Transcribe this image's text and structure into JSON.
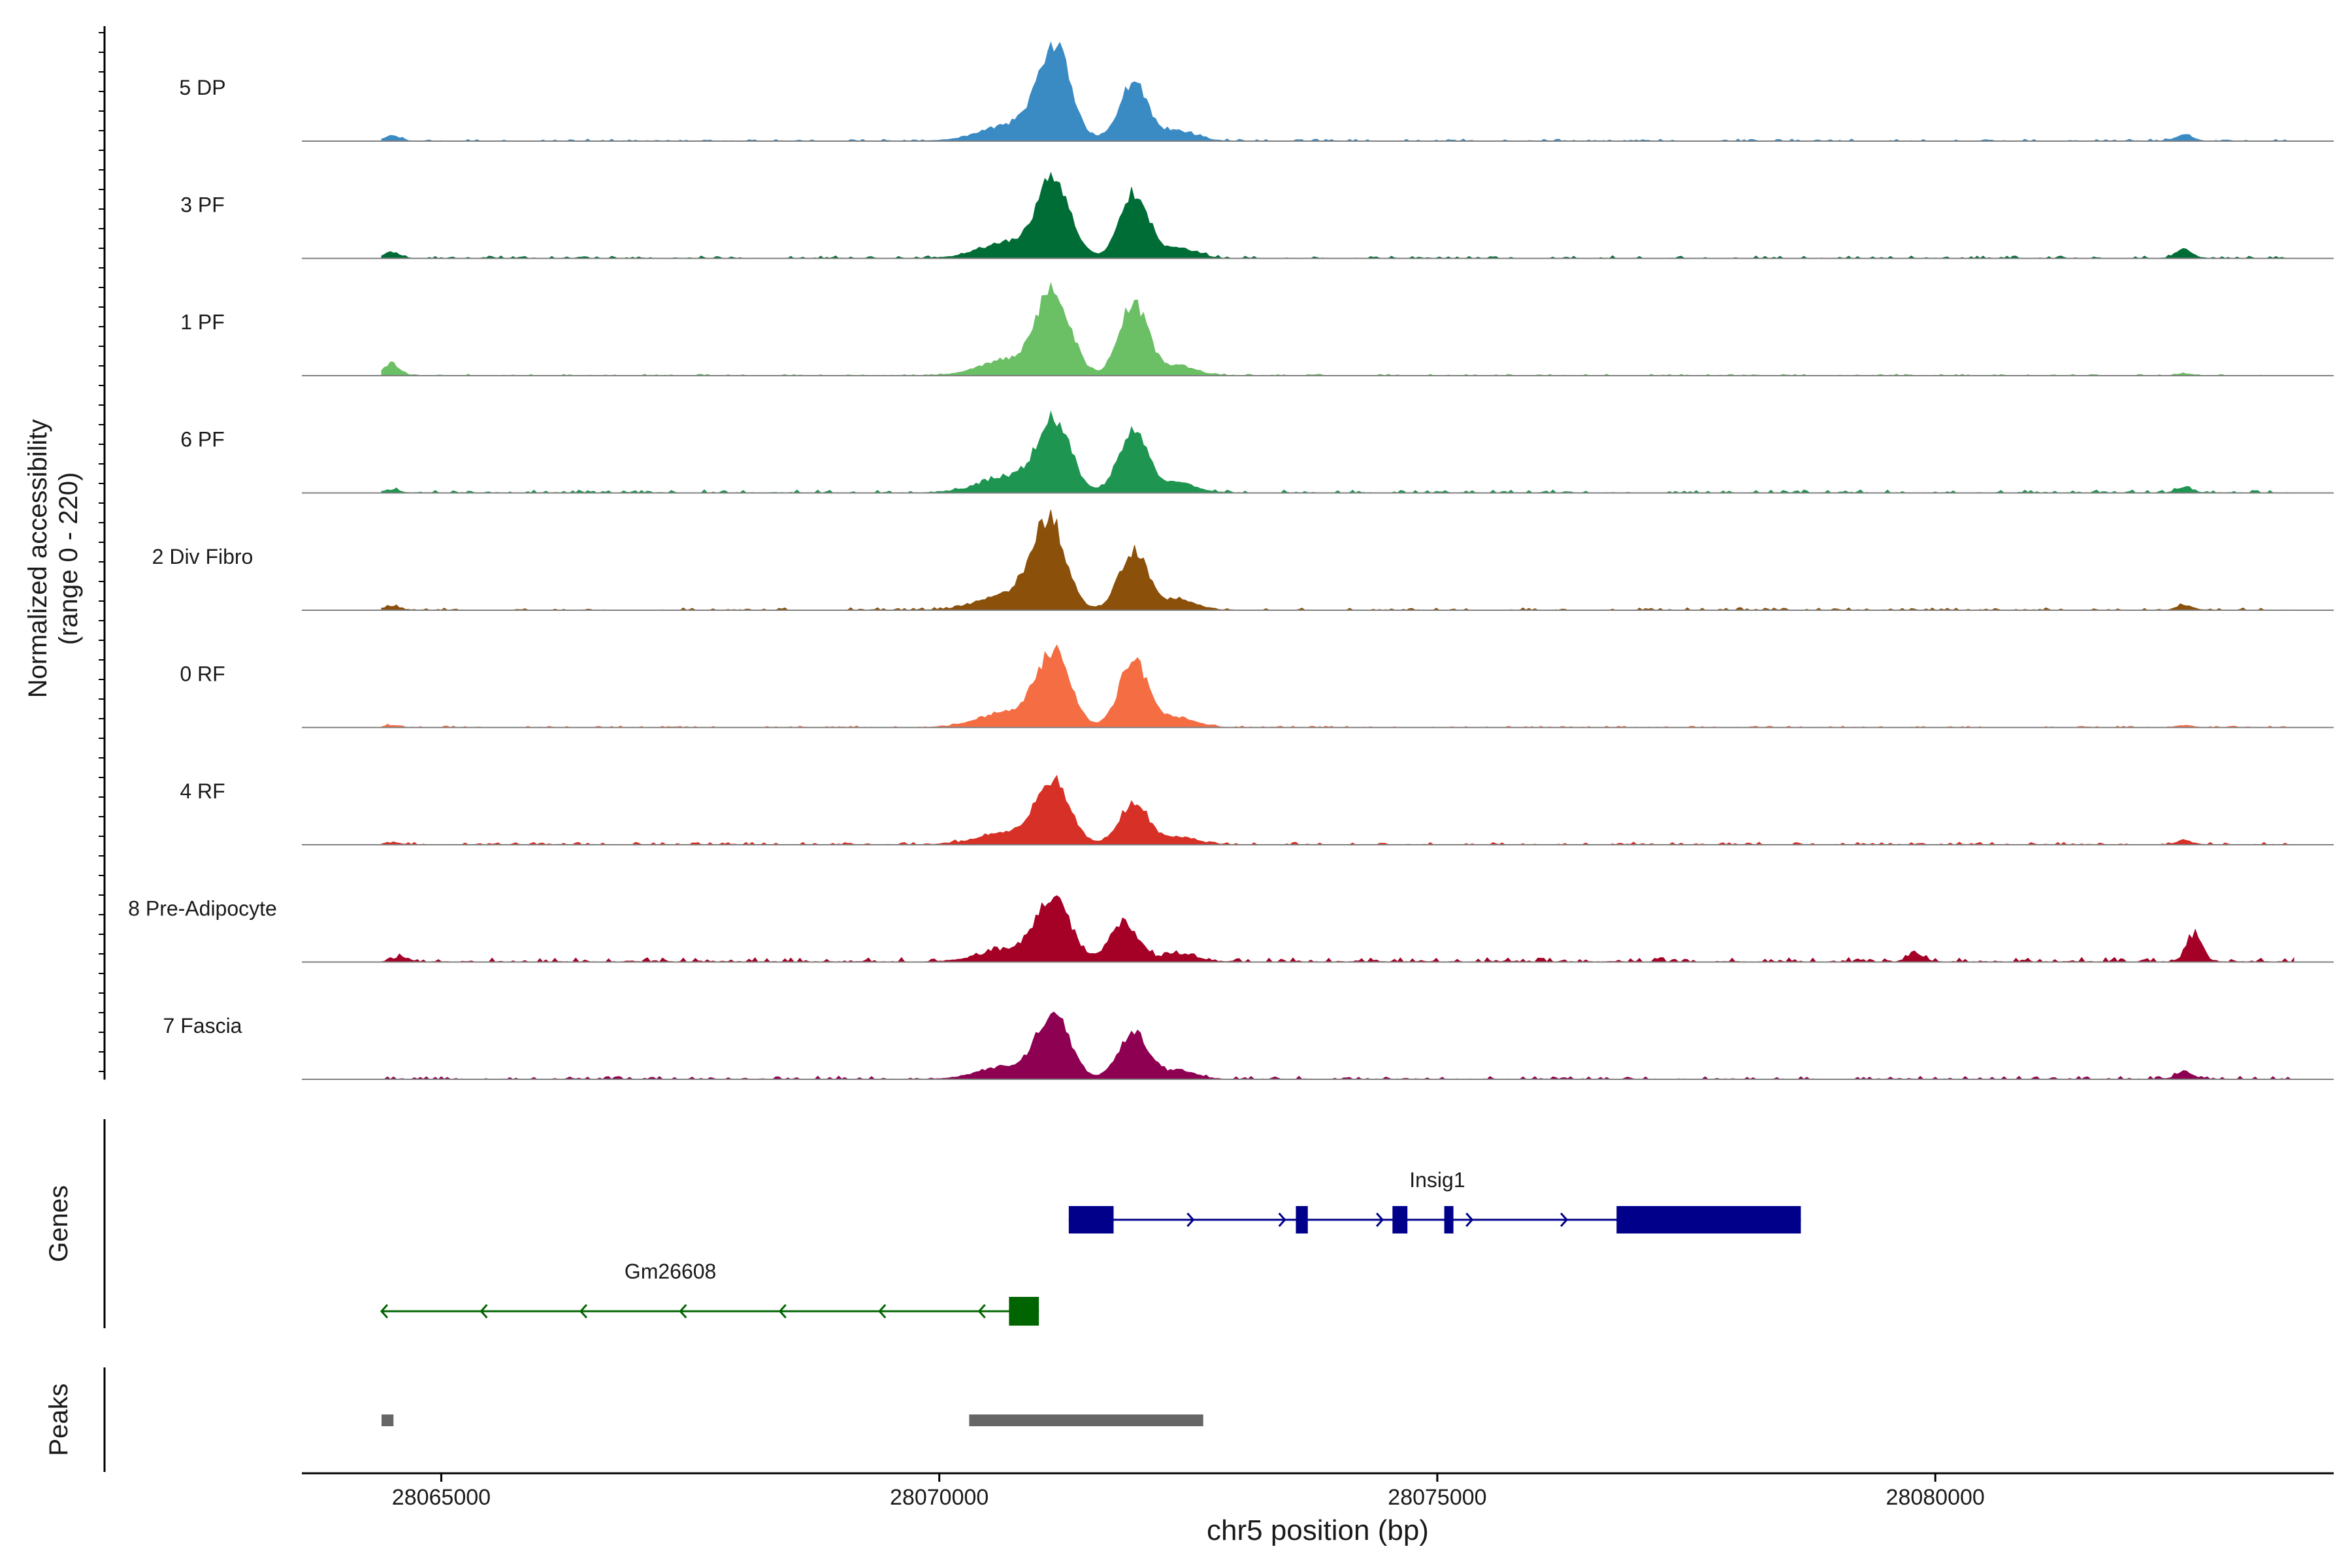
{
  "chart_data": {
    "type": "area",
    "region": "chr5",
    "xlabel": "chr5 position (bp)",
    "ylabel_line1": "Normalized accessibility",
    "ylabel_line2": "(range 0 - 220)",
    "y_range": [
      0,
      220
    ],
    "xlim": [
      28063600,
      28084000
    ],
    "x_ticks": [
      {
        "value": 28065000,
        "label": "28065000"
      },
      {
        "value": 28070000,
        "label": "28070000"
      },
      {
        "value": 28075000,
        "label": "28075000"
      },
      {
        "value": 28080000,
        "label": "28080000"
      }
    ],
    "coverage_tracks": [
      {
        "name": "5 DP",
        "color": "#3a8ac4",
        "peak_a": {
          "pos": 28071150,
          "height": 0.95
        },
        "peak_b": {
          "pos": 28071950,
          "height": 0.58
        },
        "side_peaks": [
          [
            28064500,
            0.05
          ],
          [
            28082500,
            0.07
          ]
        ],
        "noise": 0.02
      },
      {
        "name": "3 PF",
        "color": "#006d36",
        "peak_a": {
          "pos": 28071150,
          "height": 0.8
        },
        "peak_b": {
          "pos": 28071950,
          "height": 0.65
        },
        "side_peaks": [
          [
            28064500,
            0.06
          ],
          [
            28082500,
            0.09
          ]
        ],
        "noise": 0.025
      },
      {
        "name": "1 PF",
        "color": "#6bbf65",
        "peak_a": {
          "pos": 28071150,
          "height": 0.85
        },
        "peak_b": {
          "pos": 28071950,
          "height": 0.72
        },
        "side_peaks": [
          [
            28064500,
            0.12
          ],
          [
            28082500,
            0.02
          ]
        ],
        "noise": 0.015
      },
      {
        "name": "6 PF",
        "color": "#1e9550",
        "peak_a": {
          "pos": 28071150,
          "height": 0.72
        },
        "peak_b": {
          "pos": 28071950,
          "height": 0.63
        },
        "side_peaks": [
          [
            28064500,
            0.03
          ],
          [
            28082500,
            0.05
          ]
        ],
        "noise": 0.03
      },
      {
        "name": "2 Div Fibro",
        "color": "#8b500a",
        "peak_a": {
          "pos": 28071100,
          "height": 0.88
        },
        "peak_b": {
          "pos": 28071950,
          "height": 0.6
        },
        "side_peaks": [
          [
            28064500,
            0.04
          ],
          [
            28082500,
            0.05
          ]
        ],
        "noise": 0.025
      },
      {
        "name": "0 RF",
        "color": "#f46d43",
        "peak_a": {
          "pos": 28071150,
          "height": 0.75
        },
        "peak_b": {
          "pos": 28071950,
          "height": 0.68
        },
        "side_peaks": [
          [
            28064500,
            0.02
          ],
          [
            28082500,
            0.02
          ]
        ],
        "noise": 0.015
      },
      {
        "name": "4 RF",
        "color": "#d73027",
        "peak_a": {
          "pos": 28071150,
          "height": 0.63
        },
        "peak_b": {
          "pos": 28071950,
          "height": 0.42
        },
        "side_peaks": [
          [
            28064500,
            0.02
          ],
          [
            28082500,
            0.04
          ]
        ],
        "noise": 0.025
      },
      {
        "name": "8 Pre-Adipocyte",
        "color": "#a50026",
        "peak_a": {
          "pos": 28071150,
          "height": 0.62
        },
        "peak_b": {
          "pos": 28071850,
          "height": 0.4
        },
        "side_peaks": [
          [
            28064600,
            0.05
          ],
          [
            28082600,
            0.26
          ],
          [
            28079800,
            0.08
          ]
        ],
        "noise": 0.045
      },
      {
        "name": "7 Fascia",
        "color": "#8e0152",
        "peak_a": {
          "pos": 28071150,
          "height": 0.64
        },
        "peak_b": {
          "pos": 28071950,
          "height": 0.48
        },
        "side_peaks": [
          [
            28082500,
            0.08
          ]
        ],
        "noise": 0.03
      }
    ],
    "genes_label": "Genes",
    "genes": [
      {
        "name": "Insig1",
        "color": "#00008b",
        "strand": "+",
        "start": 28071300,
        "end": 28078650,
        "exons": [
          [
            28071300,
            28071750
          ],
          [
            28073580,
            28073700
          ],
          [
            28074550,
            28074700
          ],
          [
            28075070,
            28075150
          ],
          [
            28076800,
            28078650
          ]
        ],
        "arrows": [
          28072550,
          28073470,
          28074450,
          28075350,
          28076300
        ]
      },
      {
        "name": "Gm26608",
        "color": "#006400",
        "strand": "-",
        "start": 28064400,
        "end": 28071000,
        "exons": [
          [
            28070700,
            28071000
          ]
        ],
        "arrows": [
          28064400,
          28065400,
          28066400,
          28067400,
          28068400,
          28069400,
          28070400
        ]
      }
    ],
    "peaks_label": "Peaks",
    "peaks": [
      {
        "start": 28064400,
        "end": 28064520,
        "color": "#666666"
      },
      {
        "start": 28070300,
        "end": 28072650,
        "color": "#666666"
      }
    ]
  }
}
